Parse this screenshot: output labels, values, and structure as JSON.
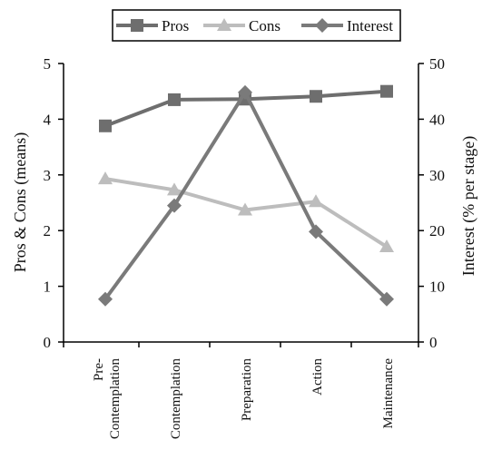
{
  "chart_data": {
    "type": "line",
    "categories": [
      "Pre-Contemplation",
      "Contemplation",
      "Preparation",
      "Action",
      "Maintenance"
    ],
    "category_label_lines": [
      [
        "Pre-",
        "Contemplation"
      ],
      [
        "Contemplation"
      ],
      [
        "Preparation"
      ],
      [
        "Action"
      ],
      [
        "Maintenance"
      ]
    ],
    "ylabel": "Pros & Cons (means)",
    "ylabel_right": "Interest (% per stage)",
    "ylim": [
      0,
      5
    ],
    "ylim_right": [
      0,
      50
    ],
    "yticks": [
      "0",
      "1",
      "2",
      "3",
      "4",
      "5"
    ],
    "yticks_right": [
      "0",
      "10",
      "20",
      "30",
      "40",
      "50"
    ],
    "legend_position": "top",
    "grid": false,
    "series": [
      {
        "name": "Pros",
        "axis": "left",
        "marker": "square",
        "color": "#6e6e6e",
        "values": [
          3.88,
          4.35,
          4.36,
          4.41,
          4.5
        ]
      },
      {
        "name": "Cons",
        "axis": "left",
        "marker": "triangle",
        "color": "#bdbdbd",
        "values": [
          2.93,
          2.73,
          2.37,
          2.52,
          1.71
        ]
      },
      {
        "name": "Interest",
        "axis": "right",
        "marker": "diamond",
        "color": "#7a7a7a",
        "values": [
          7.7,
          24.5,
          44.8,
          19.8,
          7.7
        ]
      }
    ]
  }
}
